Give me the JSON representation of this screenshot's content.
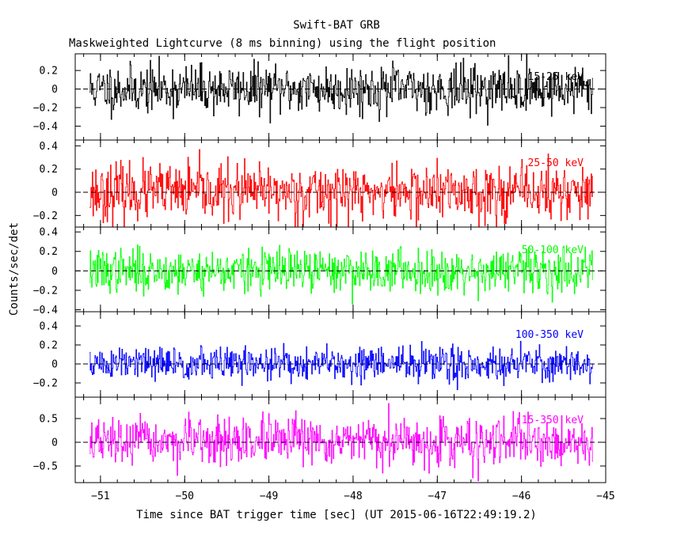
{
  "title": "Swift-BAT GRB",
  "subtitle": "Maskweighted Lightcurve (8 ms binning) using the flight position",
  "chart_data": {
    "type": "line",
    "xlabel": "Time since BAT trigger time [sec] (UT 2015-06-16T22:49:19.2)",
    "ylabel": "Counts/sec/det",
    "xlim": [
      -51.3,
      -45.0
    ],
    "x_ticks": [
      -51,
      -50,
      -49,
      -48,
      -47,
      -46,
      -45
    ],
    "x_tick_labels": [
      "−51",
      "−50",
      "−49",
      "−48",
      "−47",
      "−46",
      "−45"
    ],
    "x_data_range": [
      -51.13,
      -45.15
    ],
    "bin_size_sec": 0.008,
    "grid": false,
    "panels": [
      {
        "name": "15-25 keV",
        "color": "#000000",
        "ylim": [
          -0.55,
          0.38
        ],
        "y_ticks": [
          -0.4,
          -0.2,
          0,
          0.2
        ],
        "y_tick_labels": [
          "−0.4",
          "−0.2",
          "0",
          "0.2"
        ],
        "noise_sigma": 0.13,
        "seed": 11
      },
      {
        "name": "25-50 keV",
        "color": "#ff0000",
        "ylim": [
          -0.3,
          0.45
        ],
        "y_ticks": [
          -0.2,
          0,
          0.2,
          0.4
        ],
        "y_tick_labels": [
          "−0.2",
          "0",
          "0.2",
          "0.4"
        ],
        "noise_sigma": 0.12,
        "seed": 23
      },
      {
        "name": "50-100 keV",
        "color": "#00ff00",
        "ylim": [
          -0.42,
          0.45
        ],
        "y_ticks": [
          -0.4,
          -0.2,
          0,
          0.2,
          0.4
        ],
        "y_tick_labels": [
          "−0.4",
          "−0.2",
          "0",
          "0.2",
          "0.4"
        ],
        "noise_sigma": 0.11,
        "seed": 37
      },
      {
        "name": "100-350 keV",
        "color": "#0000ff",
        "ylim": [
          -0.35,
          0.55
        ],
        "y_ticks": [
          -0.2,
          0,
          0.2,
          0.4
        ],
        "y_tick_labels": [
          "−0.2",
          "0",
          "0.2",
          "0.4"
        ],
        "noise_sigma": 0.09,
        "seed": 51
      },
      {
        "name": "15-350 keV",
        "color": "#ff00ff",
        "ylim": [
          -0.85,
          0.95
        ],
        "y_ticks": [
          -0.5,
          0,
          0.5
        ],
        "y_tick_labels": [
          "−0.5",
          "0",
          "0.5"
        ],
        "noise_sigma": 0.24,
        "seed": 67
      }
    ]
  }
}
